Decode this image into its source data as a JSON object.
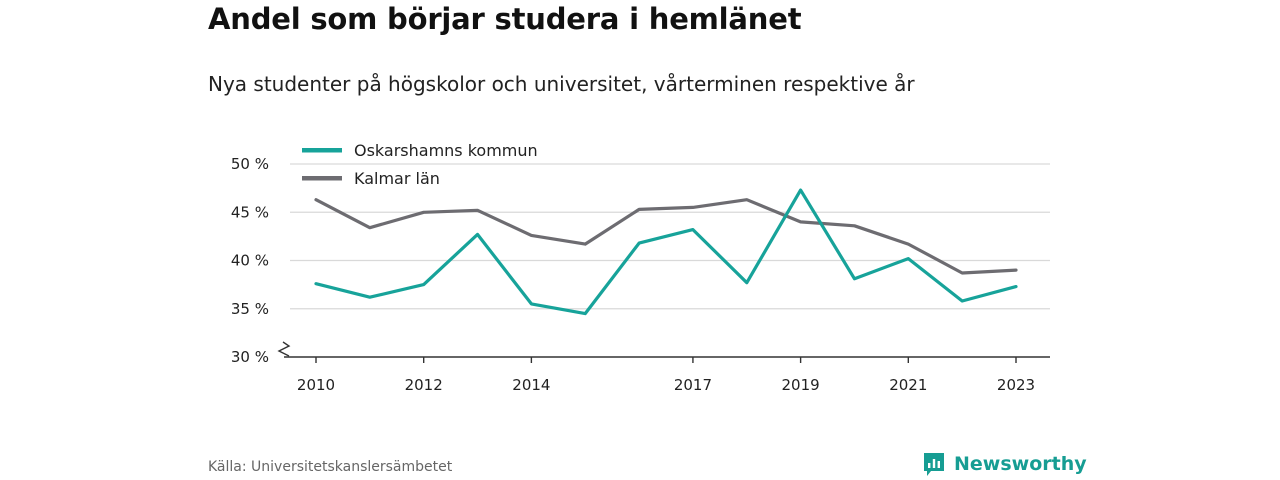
{
  "title": "Andel som börjar studera i hemlänet",
  "subtitle": "Nya studenter på högskolor och universitet, vårterminen respektive år",
  "source": "Källa: Universitetskanslersämbetet",
  "brand": {
    "name": "Newsworthy",
    "icon": "newsworthy-logo-icon",
    "color": "#169d93"
  },
  "chart_data": {
    "type": "line",
    "title": "Andel som börjar studera i hemlänet",
    "subtitle": "Nya studenter på högskolor och universitet, vårterminen respektive år",
    "x": [
      2010,
      2011,
      2012,
      2013,
      2014,
      2015,
      2016,
      2017,
      2018,
      2019,
      2020,
      2021,
      2022,
      2023
    ],
    "x_ticks": [
      2010,
      2012,
      2014,
      2017,
      2019,
      2021,
      2023
    ],
    "x_tick_labels": [
      "2010",
      "2012",
      "2014",
      "2017",
      "2019",
      "2021",
      "2023"
    ],
    "y_ticks": [
      30,
      35,
      40,
      45,
      50
    ],
    "y_tick_labels": [
      "30 %",
      "35 %",
      "40 %",
      "45 %",
      "50 %"
    ],
    "ylim": [
      30,
      50
    ],
    "y_axis_break": true,
    "grid": true,
    "legend_position": "top-left",
    "series": [
      {
        "name": "Oskarshamns kommun",
        "color": "#17a39a",
        "values": [
          37.6,
          36.2,
          37.5,
          42.7,
          35.5,
          34.5,
          41.8,
          43.2,
          37.7,
          47.3,
          38.1,
          40.2,
          35.8,
          37.3
        ]
      },
      {
        "name": "Kalmar län",
        "color": "#6d6c71",
        "values": [
          46.3,
          43.4,
          45.0,
          45.2,
          42.6,
          41.7,
          45.3,
          45.5,
          46.3,
          44.0,
          43.6,
          41.7,
          38.7,
          39.0
        ]
      }
    ]
  }
}
